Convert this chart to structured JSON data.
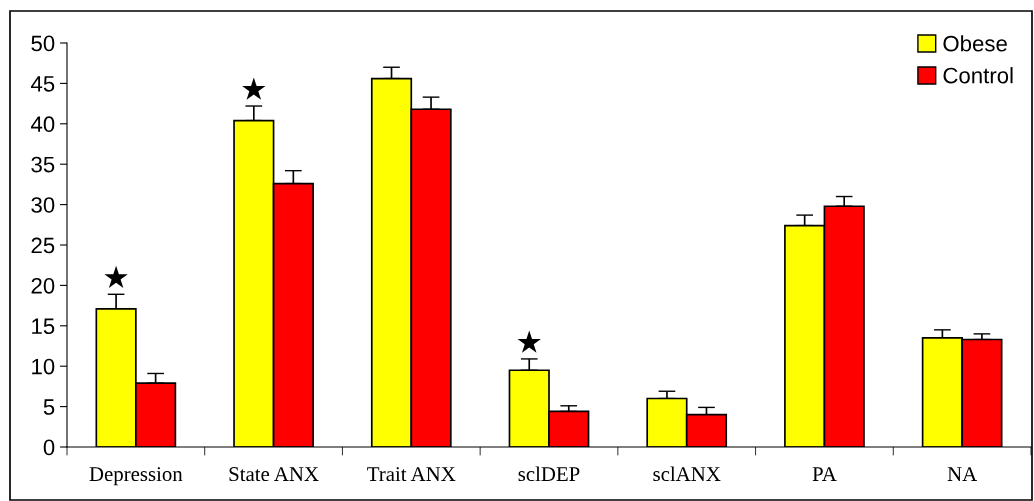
{
  "chart_data": {
    "type": "bar",
    "categories": [
      "Depression",
      "State ANX",
      "Trait ANX",
      "sclDEP",
      "sclANX",
      "PA",
      "NA"
    ],
    "series": [
      {
        "name": "Obese",
        "color": "#ffff00",
        "values": [
          17.1,
          40.4,
          45.6,
          9.5,
          6.0,
          27.4,
          13.5
        ],
        "errors": [
          [
            17.1,
            18.9
          ],
          [
            40.4,
            42.2
          ],
          [
            45.6,
            47.0
          ],
          [
            9.5,
            10.9
          ],
          [
            6.0,
            6.9
          ],
          [
            27.4,
            28.7
          ],
          [
            13.5,
            14.5
          ]
        ]
      },
      {
        "name": "Control",
        "color": "#ff0000",
        "values": [
          7.9,
          32.6,
          41.8,
          4.4,
          4.0,
          29.8,
          13.3
        ],
        "errors": [
          [
            7.9,
            9.1
          ],
          [
            32.6,
            34.2
          ],
          [
            41.8,
            43.3
          ],
          [
            4.4,
            5.1
          ],
          [
            4.0,
            4.9
          ],
          [
            29.8,
            31.0
          ],
          [
            13.3,
            14.0
          ]
        ]
      }
    ],
    "annotations": [
      "★",
      "★",
      "★"
    ],
    "ylim": [
      0,
      50
    ],
    "yticks": [
      0,
      5,
      10,
      15,
      20,
      25,
      30,
      35,
      40,
      45,
      50
    ],
    "grid": false,
    "legend": "top right"
  }
}
